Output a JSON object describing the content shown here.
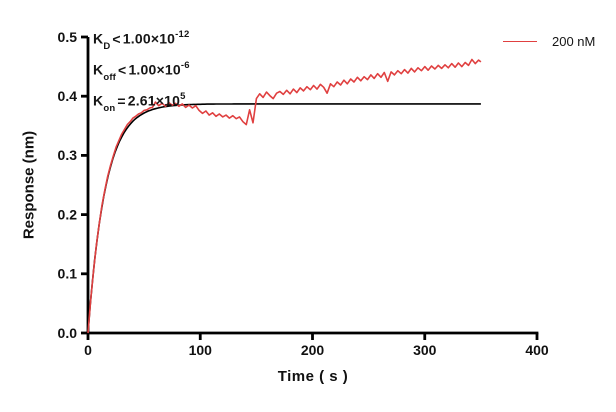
{
  "figure": {
    "annotation": {
      "kd": {
        "k": "K",
        "sub": "D",
        "rel": "<",
        "value": "1.00×10",
        "exp": "-12"
      },
      "koff": {
        "k": "K",
        "sub": "off",
        "rel": "<",
        "value": "1.00×10",
        "exp": "-6"
      },
      "kon": {
        "k": "K",
        "sub": "on",
        "rel": "=",
        "value": "2.61×10",
        "exp": "5"
      }
    },
    "legend": {
      "label": "200 nM",
      "color": "#e04040"
    }
  },
  "chart_data": {
    "type": "line",
    "title": "",
    "xlabel": "Time ( s )",
    "ylabel": "Response (nm)",
    "xlim": [
      0,
      400
    ],
    "ylim": [
      0,
      0.5
    ],
    "x_ticks": [
      "0",
      "100",
      "200",
      "300",
      "400"
    ],
    "y_ticks": [
      "0.0",
      "0.1",
      "0.2",
      "0.3",
      "0.4",
      "0.5"
    ],
    "grid": false,
    "legend_position": "top-right",
    "annotations": [
      "KD<1.00×10^-12",
      "Koff<1.00×10^-6",
      "Kon=2.61×10^5"
    ],
    "axis_color": "#000000",
    "series": [
      {
        "name": "200 nM",
        "color": "#e04040",
        "points": [
          [
            0,
            0
          ],
          [
            2.5,
            0.058
          ],
          [
            5,
            0.106
          ],
          [
            7.5,
            0.149
          ],
          [
            10,
            0.184
          ],
          [
            12.5,
            0.216
          ],
          [
            15,
            0.241
          ],
          [
            17.5,
            0.264
          ],
          [
            20,
            0.283
          ],
          [
            22.5,
            0.299
          ],
          [
            25,
            0.314
          ],
          [
            27.5,
            0.325
          ],
          [
            30,
            0.336
          ],
          [
            32.5,
            0.344
          ],
          [
            35,
            0.352
          ],
          [
            37.5,
            0.357
          ],
          [
            40,
            0.363
          ],
          [
            42.5,
            0.366
          ],
          [
            45,
            0.37
          ],
          [
            47.5,
            0.372
          ],
          [
            50,
            0.376
          ],
          [
            52.5,
            0.377
          ],
          [
            55,
            0.38
          ],
          [
            57.5,
            0.381
          ],
          [
            60,
            0.39
          ],
          [
            63,
            0.384
          ],
          [
            66,
            0.388
          ],
          [
            69,
            0.383
          ],
          [
            72,
            0.389
          ],
          [
            75,
            0.385
          ],
          [
            78,
            0.388
          ],
          [
            81,
            0.383
          ],
          [
            84,
            0.387
          ],
          [
            87,
            0.381
          ],
          [
            90,
            0.385
          ],
          [
            93,
            0.38
          ],
          [
            96,
            0.384
          ],
          [
            99,
            0.376
          ],
          [
            102,
            0.371
          ],
          [
            105,
            0.375
          ],
          [
            108,
            0.368
          ],
          [
            111,
            0.372
          ],
          [
            114,
            0.366
          ],
          [
            117,
            0.37
          ],
          [
            120,
            0.365
          ],
          [
            123,
            0.368
          ],
          [
            126,
            0.363
          ],
          [
            129,
            0.367
          ],
          [
            132,
            0.362
          ],
          [
            135,
            0.365
          ],
          [
            138,
            0.357
          ],
          [
            141,
            0.352
          ],
          [
            144,
            0.377
          ],
          [
            147,
            0.355
          ],
          [
            150,
            0.396
          ],
          [
            153,
            0.404
          ],
          [
            156,
            0.398
          ],
          [
            159,
            0.407
          ],
          [
            162,
            0.401
          ],
          [
            165,
            0.396
          ],
          [
            168,
            0.405
          ],
          [
            171,
            0.408
          ],
          [
            174,
            0.403
          ],
          [
            177,
            0.41
          ],
          [
            180,
            0.404
          ],
          [
            183,
            0.412
          ],
          [
            186,
            0.406
          ],
          [
            189,
            0.414
          ],
          [
            192,
            0.409
          ],
          [
            195,
            0.416
          ],
          [
            198,
            0.411
          ],
          [
            201,
            0.418
          ],
          [
            204,
            0.412
          ],
          [
            207,
            0.42
          ],
          [
            210,
            0.415
          ],
          [
            213,
            0.405
          ],
          [
            216,
            0.421
          ],
          [
            219,
            0.416
          ],
          [
            222,
            0.424
          ],
          [
            225,
            0.419
          ],
          [
            228,
            0.427
          ],
          [
            231,
            0.421
          ],
          [
            234,
            0.429
          ],
          [
            237,
            0.424
          ],
          [
            240,
            0.432
          ],
          [
            243,
            0.426
          ],
          [
            246,
            0.433
          ],
          [
            249,
            0.428
          ],
          [
            252,
            0.436
          ],
          [
            255,
            0.43
          ],
          [
            258,
            0.438
          ],
          [
            261,
            0.432
          ],
          [
            264,
            0.44
          ],
          [
            267,
            0.425
          ],
          [
            270,
            0.441
          ],
          [
            273,
            0.436
          ],
          [
            276,
            0.443
          ],
          [
            279,
            0.438
          ],
          [
            282,
            0.445
          ],
          [
            285,
            0.439
          ],
          [
            288,
            0.447
          ],
          [
            291,
            0.441
          ],
          [
            294,
            0.448
          ],
          [
            297,
            0.443
          ],
          [
            300,
            0.45
          ],
          [
            303,
            0.444
          ],
          [
            306,
            0.451
          ],
          [
            309,
            0.446
          ],
          [
            312,
            0.452
          ],
          [
            315,
            0.447
          ],
          [
            318,
            0.453
          ],
          [
            321,
            0.448
          ],
          [
            324,
            0.455
          ],
          [
            327,
            0.449
          ],
          [
            330,
            0.456
          ],
          [
            333,
            0.45
          ],
          [
            336,
            0.457
          ],
          [
            339,
            0.452
          ],
          [
            342,
            0.462
          ],
          [
            345,
            0.455
          ],
          [
            348,
            0.461
          ],
          [
            350,
            0.458
          ]
        ]
      },
      {
        "name": "fit",
        "color": "#000000",
        "model": "one-phase-association",
        "plateau": 0.387,
        "tau": 15.5,
        "t_start": 0,
        "t_end": 350
      }
    ]
  }
}
